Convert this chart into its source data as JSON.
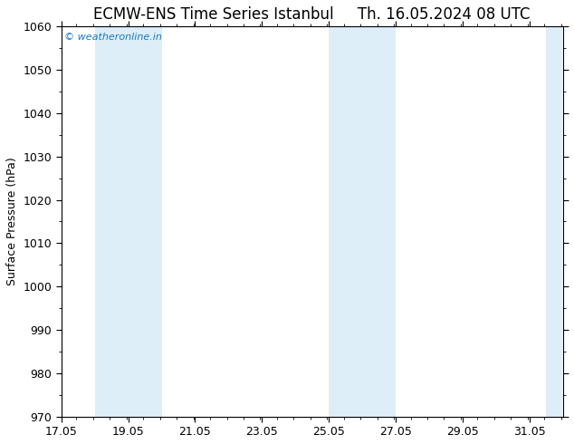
{
  "title_left": "ECMW-ENS Time Series Istanbul",
  "title_right": "Th. 16.05.2024 08 UTC",
  "ylabel": "Surface Pressure (hPa)",
  "ylim": [
    970,
    1060
  ],
  "yticks": [
    970,
    980,
    990,
    1000,
    1010,
    1020,
    1030,
    1040,
    1050,
    1060
  ],
  "xlim_start": 17.05,
  "xlim_end": 32.05,
  "xticks": [
    17.05,
    19.05,
    21.05,
    23.05,
    25.05,
    27.05,
    29.05,
    31.05
  ],
  "xticklabels": [
    "17.05",
    "19.05",
    "21.05",
    "23.05",
    "25.05",
    "27.05",
    "29.05",
    "31.05"
  ],
  "shaded_bands": [
    {
      "xmin": 18.05,
      "xmax": 19.05
    },
    {
      "xmin": 19.05,
      "xmax": 20.05
    },
    {
      "xmin": 25.05,
      "xmax": 26.05
    },
    {
      "xmin": 26.05,
      "xmax": 27.05
    },
    {
      "xmin": 31.55,
      "xmax": 32.05
    }
  ],
  "band_color": "#ddeef8",
  "watermark_text": "© weatheronline.in",
  "watermark_color": "#1a7abf",
  "title_fontsize": 12,
  "tick_fontsize": 9,
  "ylabel_fontsize": 9,
  "background_color": "#ffffff"
}
